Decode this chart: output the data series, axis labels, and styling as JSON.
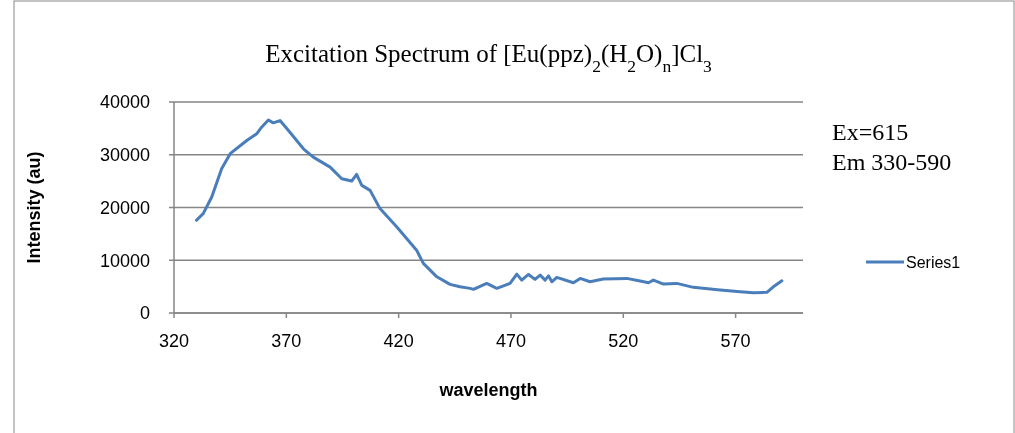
{
  "chart_data": {
    "type": "line",
    "title": "Excitation Spectrum of [Eu(ppz)$_{2}$(H$_{2}$O)$_{n}$]Cl$_{3}$",
    "xlabel": "wavelength",
    "ylabel": "Intensity (au)",
    "annotations": [
      "Ex=615",
      "Em 330-590"
    ],
    "xlim": [
      320,
      600
    ],
    "xticks": [
      320,
      370,
      420,
      470,
      520,
      570
    ],
    "ylim": [
      0,
      40000
    ],
    "yticks": [
      0,
      10000,
      20000,
      30000,
      40000
    ],
    "grid": "y",
    "legend": "right",
    "marker": "none",
    "line_style": "solid",
    "series": [
      {
        "name": "Series1",
        "color": "#4a7ebb",
        "x": [
          330,
          333,
          336.8,
          341.2,
          345,
          352.4,
          356.8,
          359,
          362,
          364.2,
          367.2,
          371.6,
          377.6,
          382,
          389.5,
          394.7,
          399.1,
          401.3,
          403.6,
          407.3,
          411.7,
          419.2,
          428,
          431,
          437,
          442.9,
          447.3,
          451.8,
          453.3,
          459.2,
          463.7,
          469.6,
          472.6,
          474.8,
          477.8,
          480.7,
          483,
          485.2,
          486.7,
          488.2,
          490.4,
          497.8,
          500.8,
          505.2,
          511.1,
          521.6,
          527.5,
          531.2,
          533.4,
          537.9,
          543.8,
          551.2,
          563.1,
          572,
          577.9,
          583.9,
          586.8,
          590.6
        ],
        "values": [
          17580,
          18850,
          22000,
          27350,
          30200,
          32700,
          33970,
          35220,
          36600,
          36050,
          36480,
          34270,
          31130,
          29550,
          27660,
          25460,
          25010,
          26280,
          24200,
          23250,
          19790,
          16310,
          11910,
          9400,
          6860,
          5420,
          4970,
          4670,
          4480,
          5610,
          4670,
          5610,
          7370,
          6240,
          7310,
          6370,
          7180,
          6240,
          7050,
          5920,
          6750,
          5730,
          6560,
          5920,
          6430,
          6560,
          6050,
          5730,
          6240,
          5480,
          5610,
          4860,
          4350,
          4030,
          3840,
          3910,
          4970,
          6110
        ]
      }
    ]
  }
}
